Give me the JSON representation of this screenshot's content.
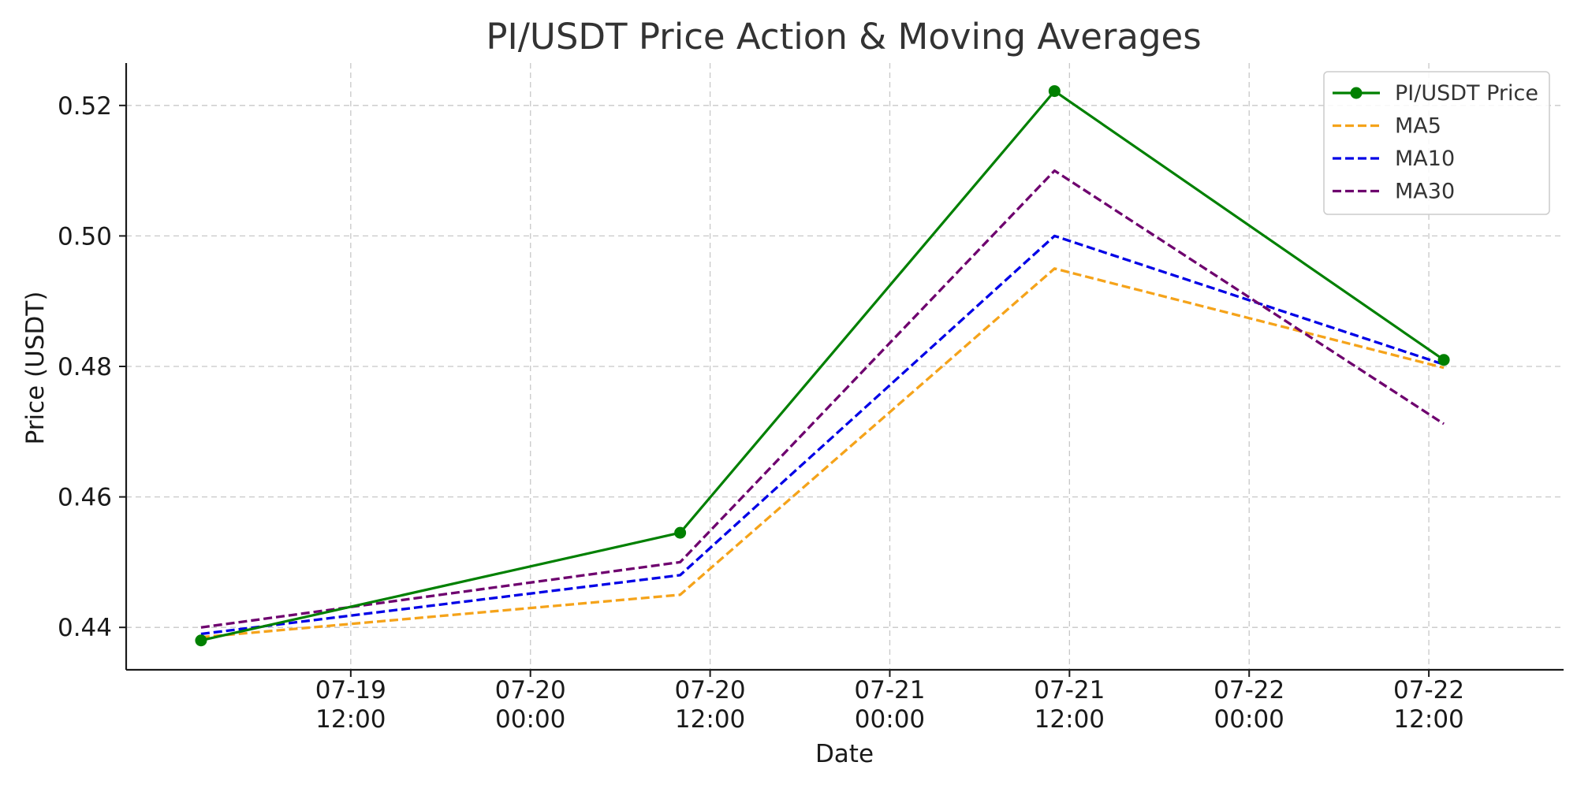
{
  "chart_data": {
    "type": "line",
    "title": "PI/USDT Price Action & Moving Averages",
    "xlabel": "Date",
    "ylabel": "Price (USDT)",
    "x": [
      "2025-07-19 02:00",
      "2025-07-20 10:00",
      "2025-07-21 11:00",
      "2025-07-22 13:00"
    ],
    "x_ticks": [
      {
        "value": "2025-07-19 12:00",
        "line1": "07-19",
        "line2": "12:00"
      },
      {
        "value": "2025-07-20 00:00",
        "line1": "07-20",
        "line2": "00:00"
      },
      {
        "value": "2025-07-20 12:00",
        "line1": "07-20",
        "line2": "12:00"
      },
      {
        "value": "2025-07-21 00:00",
        "line1": "07-21",
        "line2": "00:00"
      },
      {
        "value": "2025-07-21 12:00",
        "line1": "07-21",
        "line2": "12:00"
      },
      {
        "value": "2025-07-22 00:00",
        "line1": "07-22",
        "line2": "00:00"
      },
      {
        "value": "2025-07-22 12:00",
        "line1": "07-22",
        "line2": "12:00"
      }
    ],
    "xlim": [
      "2025-07-18 21:00",
      "2025-07-22 21:00"
    ],
    "ylim": [
      0.4335,
      0.5265
    ],
    "y_ticks": [
      0.44,
      0.46,
      0.48,
      0.5,
      0.52
    ],
    "y_tick_labels": [
      "0.44",
      "0.46",
      "0.48",
      "0.50",
      "0.52"
    ],
    "grid": true,
    "legend_position": "top-right",
    "series": [
      {
        "name": "PI/USDT Price",
        "values": [
          0.438,
          0.4545,
          0.5222,
          0.481
        ],
        "color": "#008000",
        "style": "solid",
        "markers": true
      },
      {
        "name": "MA5",
        "values": [
          0.4385,
          0.445,
          0.495,
          0.4798
        ],
        "color": "#f5a31a",
        "style": "dashed",
        "markers": false
      },
      {
        "name": "MA10",
        "values": [
          0.439,
          0.448,
          0.5,
          0.4803
        ],
        "color": "#0000e6",
        "style": "dashed",
        "markers": false
      },
      {
        "name": "MA30",
        "values": [
          0.44,
          0.45,
          0.51,
          0.4712
        ],
        "color": "#6e006e",
        "style": "dashed",
        "markers": false
      }
    ]
  }
}
